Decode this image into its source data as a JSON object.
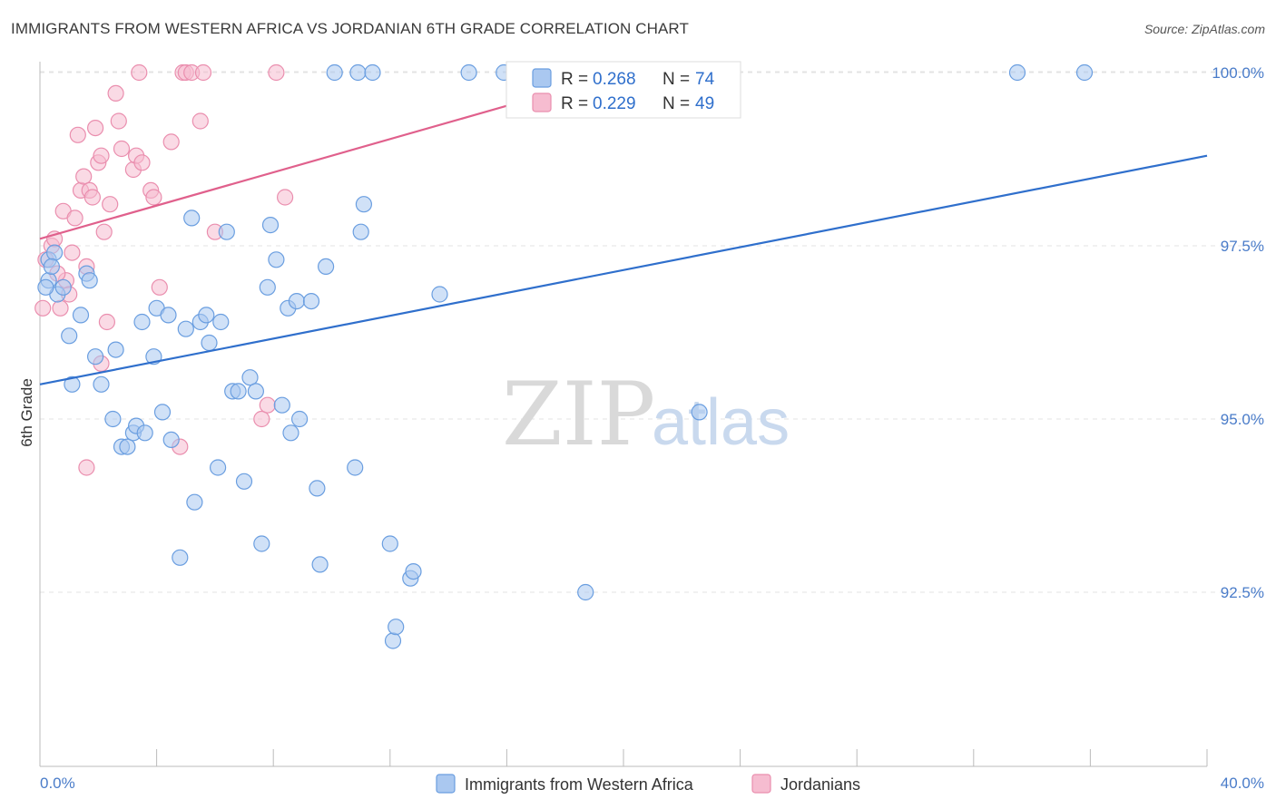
{
  "title": "IMMIGRANTS FROM WESTERN AFRICA VS JORDANIAN 6TH GRADE CORRELATION CHART",
  "source": "Source: ZipAtlas.com",
  "watermark": {
    "zip": "ZIP",
    "atlas": "atlas"
  },
  "legend_box": [
    {
      "r_label": "R = ",
      "r_value": "0.268",
      "n_label": "N = ",
      "n_value": "74"
    },
    {
      "r_label": "R = ",
      "r_value": "0.229",
      "n_label": "N = ",
      "n_value": "49"
    }
  ],
  "colors": {
    "blue_fill": "#aac8f0",
    "blue_stroke": "#6a9ee0",
    "blue_line": "#2f6fcc",
    "pink_fill": "#f6bcd0",
    "pink_stroke": "#ea8eae",
    "pink_line": "#e0608c",
    "grid": "#e3e3e3",
    "axis": "#bbbbbb"
  },
  "chart_data": {
    "type": "scatter",
    "title": "IMMIGRANTS FROM WESTERN AFRICA VS JORDANIAN 6TH GRADE CORRELATION CHART",
    "xlabel": "",
    "ylabel": "6th Grade",
    "xlim": [
      0,
      40
    ],
    "ylim": [
      90.2,
      100.5
    ],
    "x_tick_labels": [
      "0.0%",
      "40.0%"
    ],
    "y_ticks": [
      92.5,
      95.0,
      97.5,
      100.0
    ],
    "y_tick_labels": [
      "92.5%",
      "95.0%",
      "97.5%",
      "100.0%"
    ],
    "grid": "horizontal dashed",
    "legend_position": "top-center",
    "series": [
      {
        "name": "Immigrants from Western Africa",
        "color": "#6a9ee0",
        "R": 0.268,
        "N": 74,
        "trend": {
          "x": [
            0,
            40
          ],
          "y": [
            95.5,
            98.8
          ]
        },
        "points": [
          [
            0.3,
            97.0
          ],
          [
            0.3,
            97.3
          ],
          [
            0.5,
            97.4
          ],
          [
            0.6,
            96.8
          ],
          [
            0.8,
            96.9
          ],
          [
            1.0,
            96.2
          ],
          [
            1.1,
            95.5
          ],
          [
            1.4,
            96.5
          ],
          [
            1.6,
            97.1
          ],
          [
            1.7,
            97.0
          ],
          [
            1.9,
            95.9
          ],
          [
            2.1,
            95.5
          ],
          [
            2.5,
            95.0
          ],
          [
            2.6,
            96.0
          ],
          [
            2.8,
            94.6
          ],
          [
            3.0,
            94.6
          ],
          [
            3.2,
            94.8
          ],
          [
            3.3,
            94.9
          ],
          [
            3.6,
            94.8
          ],
          [
            3.5,
            96.4
          ],
          [
            3.9,
            95.9
          ],
          [
            4.0,
            96.6
          ],
          [
            4.2,
            95.1
          ],
          [
            4.4,
            96.5
          ],
          [
            4.5,
            94.7
          ],
          [
            4.8,
            93.0
          ],
          [
            5.0,
            96.3
          ],
          [
            5.2,
            97.9
          ],
          [
            5.3,
            93.8
          ],
          [
            5.5,
            96.4
          ],
          [
            5.7,
            96.5
          ],
          [
            5.8,
            96.1
          ],
          [
            6.1,
            94.3
          ],
          [
            6.2,
            96.4
          ],
          [
            6.4,
            97.7
          ],
          [
            6.6,
            95.4
          ],
          [
            6.8,
            95.4
          ],
          [
            7.0,
            94.1
          ],
          [
            7.2,
            95.6
          ],
          [
            7.4,
            95.4
          ],
          [
            7.6,
            93.2
          ],
          [
            7.8,
            96.9
          ],
          [
            7.9,
            97.8
          ],
          [
            8.1,
            97.3
          ],
          [
            8.3,
            95.2
          ],
          [
            8.5,
            96.6
          ],
          [
            8.6,
            94.8
          ],
          [
            8.8,
            96.7
          ],
          [
            8.9,
            95.0
          ],
          [
            9.3,
            96.7
          ],
          [
            9.5,
            94.0
          ],
          [
            9.6,
            92.9
          ],
          [
            9.8,
            97.2
          ],
          [
            10.1,
            100.0
          ],
          [
            10.8,
            94.3
          ],
          [
            10.9,
            100.0
          ],
          [
            11.0,
            97.7
          ],
          [
            11.1,
            98.1
          ],
          [
            11.4,
            100.0
          ],
          [
            12.0,
            93.2
          ],
          [
            12.7,
            92.7
          ],
          [
            12.8,
            92.8
          ],
          [
            12.1,
            91.8
          ],
          [
            12.2,
            92.0
          ],
          [
            13.7,
            96.8
          ],
          [
            14.7,
            100.0
          ],
          [
            15.9,
            100.0
          ],
          [
            16.6,
            100.0
          ],
          [
            18.7,
            92.5
          ],
          [
            22.6,
            95.1
          ],
          [
            33.5,
            100.0
          ],
          [
            35.8,
            100.0
          ],
          [
            0.2,
            96.9
          ],
          [
            0.4,
            97.2
          ]
        ]
      },
      {
        "name": "Jordanians",
        "color": "#ea8eae",
        "R": 0.229,
        "N": 49,
        "trend": {
          "x": [
            0,
            20
          ],
          "y": [
            97.6,
            100.0
          ]
        },
        "points": [
          [
            0.1,
            96.6
          ],
          [
            0.2,
            97.3
          ],
          [
            0.4,
            97.5
          ],
          [
            0.5,
            97.6
          ],
          [
            0.7,
            96.6
          ],
          [
            0.8,
            98.0
          ],
          [
            0.9,
            97.0
          ],
          [
            1.0,
            96.8
          ],
          [
            1.2,
            97.9
          ],
          [
            1.3,
            99.1
          ],
          [
            1.4,
            98.3
          ],
          [
            1.5,
            98.5
          ],
          [
            1.6,
            97.2
          ],
          [
            1.7,
            98.3
          ],
          [
            1.8,
            98.2
          ],
          [
            1.9,
            99.2
          ],
          [
            2.0,
            98.7
          ],
          [
            2.1,
            98.8
          ],
          [
            2.2,
            97.7
          ],
          [
            2.3,
            96.4
          ],
          [
            2.4,
            98.1
          ],
          [
            2.6,
            99.7
          ],
          [
            2.7,
            99.3
          ],
          [
            2.8,
            98.9
          ],
          [
            3.2,
            98.6
          ],
          [
            3.3,
            98.8
          ],
          [
            3.5,
            98.7
          ],
          [
            3.8,
            98.3
          ],
          [
            3.9,
            98.2
          ],
          [
            4.1,
            96.9
          ],
          [
            4.5,
            99.0
          ],
          [
            4.8,
            94.6
          ],
          [
            4.9,
            100.0
          ],
          [
            5.0,
            100.0
          ],
          [
            5.2,
            100.0
          ],
          [
            5.5,
            99.3
          ],
          [
            5.6,
            100.0
          ],
          [
            6.0,
            97.7
          ],
          [
            7.6,
            95.0
          ],
          [
            7.8,
            95.2
          ],
          [
            8.1,
            100.0
          ],
          [
            8.4,
            98.2
          ],
          [
            1.6,
            94.3
          ],
          [
            3.4,
            100.0
          ],
          [
            2.1,
            95.8
          ],
          [
            1.1,
            97.4
          ],
          [
            0.6,
            97.1
          ],
          [
            19.2,
            100.0
          ],
          [
            18.3,
            100.0
          ]
        ]
      }
    ]
  },
  "bottom_legend": [
    {
      "label": "Immigrants from Western Africa"
    },
    {
      "label": "Jordanians"
    }
  ]
}
